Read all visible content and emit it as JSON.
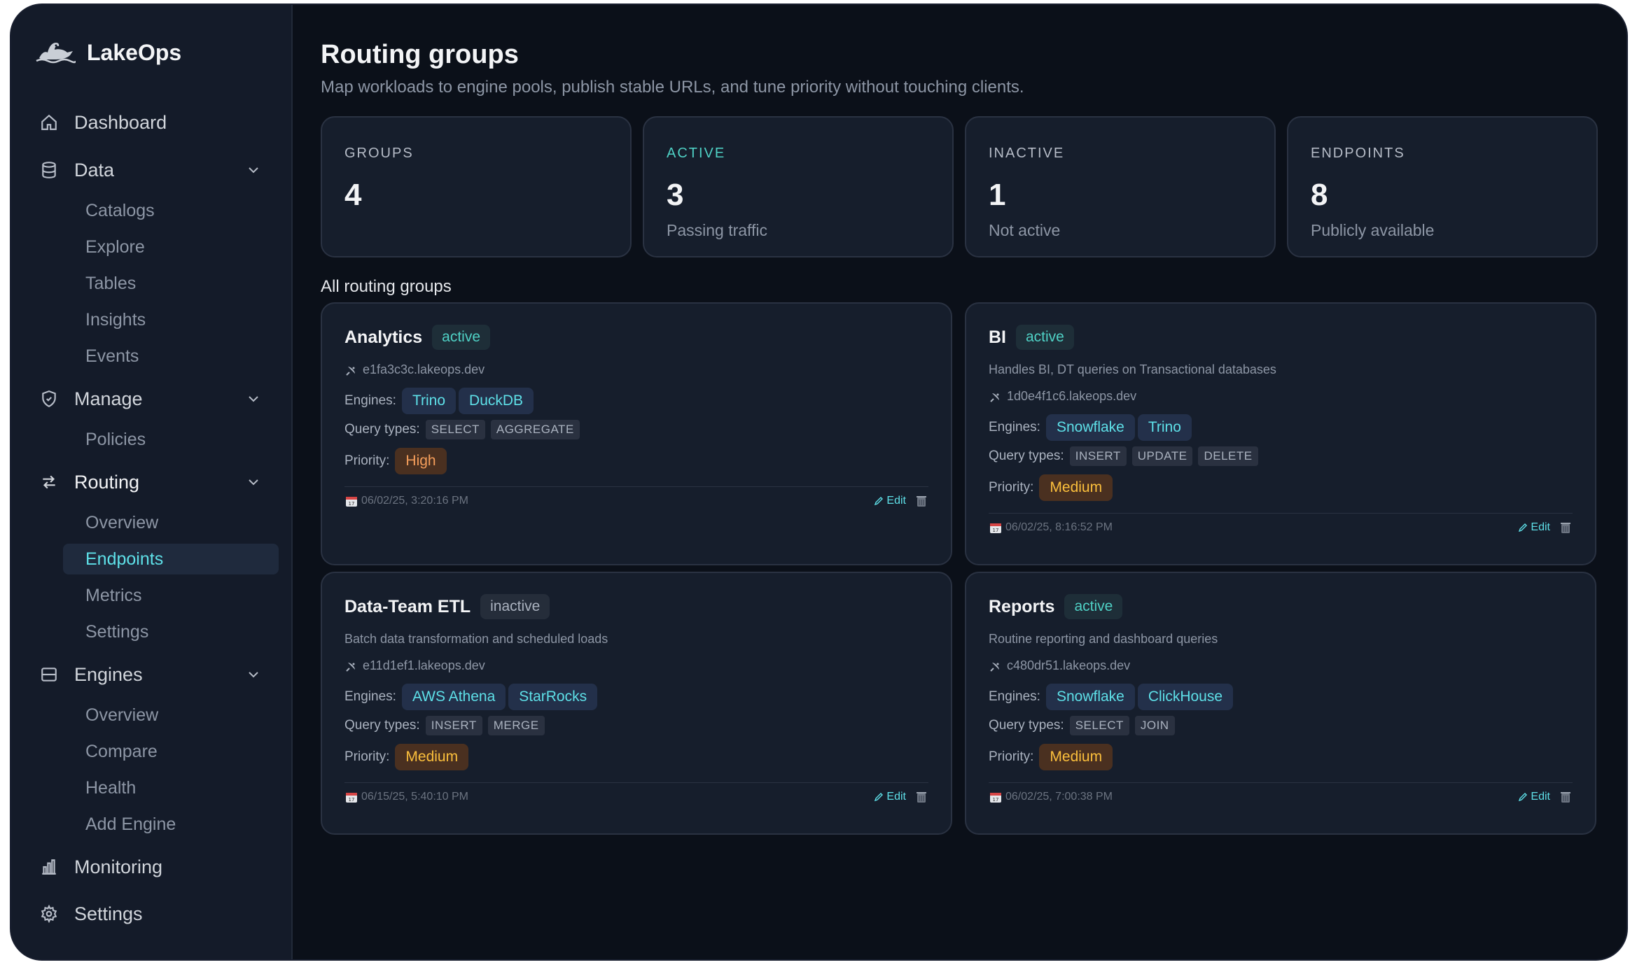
{
  "app": {
    "name": "LakeOps"
  },
  "sidebar": {
    "dashboard": "Dashboard",
    "data": {
      "label": "Data",
      "items": [
        "Catalogs",
        "Explore",
        "Tables",
        "Insights",
        "Events"
      ]
    },
    "manage": {
      "label": "Manage",
      "items": [
        "Policies"
      ]
    },
    "routing": {
      "label": "Routing",
      "items": [
        "Overview",
        "Endpoints",
        "Metrics",
        "Settings"
      ],
      "active": "Endpoints"
    },
    "engines": {
      "label": "Engines",
      "items": [
        "Overview",
        "Compare",
        "Health",
        "Add Engine"
      ]
    },
    "monitoring": "Monitoring",
    "settings": "Settings"
  },
  "header": {
    "title": "Routing groups",
    "subtitle": "Map workloads to engine pools, publish stable URLs, and tune priority without touching clients."
  },
  "stats": [
    {
      "key": "GROUPS",
      "value": "4",
      "desc": ""
    },
    {
      "key": "ACTIVE",
      "value": "3",
      "desc": "Passing traffic"
    },
    {
      "key": "INACTIVE",
      "value": "1",
      "desc": "Not active"
    },
    {
      "key": "ENDPOINTS",
      "value": "8",
      "desc": "Publicly available"
    }
  ],
  "section_label": "All routing groups",
  "labels": {
    "engines": "Engines:",
    "query_types": "Query types:",
    "priority": "Priority:",
    "edit": "Edit"
  },
  "groups": [
    {
      "name": "Analytics",
      "status": "active",
      "description": "",
      "url": "e1fa3c3c.lakeops.dev",
      "engines": [
        "Trino",
        "DuckDB"
      ],
      "query_types": [
        "SELECT",
        "AGGREGATE"
      ],
      "priority": "High",
      "date": "06/02/25, 3:20:16 PM"
    },
    {
      "name": "BI",
      "status": "active",
      "description": "Handles BI, DT queries on Transactional databases",
      "url": "1d0e4f1c6.lakeops.dev",
      "engines": [
        "Snowflake",
        "Trino"
      ],
      "query_types": [
        "INSERT",
        "UPDATE",
        "DELETE"
      ],
      "priority": "Medium",
      "date": "06/02/25, 8:16:52 PM"
    },
    {
      "name": "Data-Team ETL",
      "status": "inactive",
      "description": "Batch data transformation and scheduled loads",
      "url": "e11d1ef1.lakeops.dev",
      "engines": [
        "AWS Athena",
        "StarRocks"
      ],
      "query_types": [
        "INSERT",
        "MERGE"
      ],
      "priority": "Medium",
      "date": "06/15/25, 5:40:10 PM"
    },
    {
      "name": "Reports",
      "status": "active",
      "description": "Routine reporting and dashboard queries",
      "url": "c480dr51.lakeops.dev",
      "engines": [
        "Snowflake",
        "ClickHouse"
      ],
      "query_types": [
        "SELECT",
        "JOIN"
      ],
      "priority": "Medium",
      "date": "06/02/25, 7:00:38 PM"
    }
  ],
  "colors": {
    "accent": "#5ee0e8",
    "active": "#4fd1c5",
    "priority": "#fbbf3c",
    "background": "#0b1019",
    "panel": "#161e2c"
  }
}
